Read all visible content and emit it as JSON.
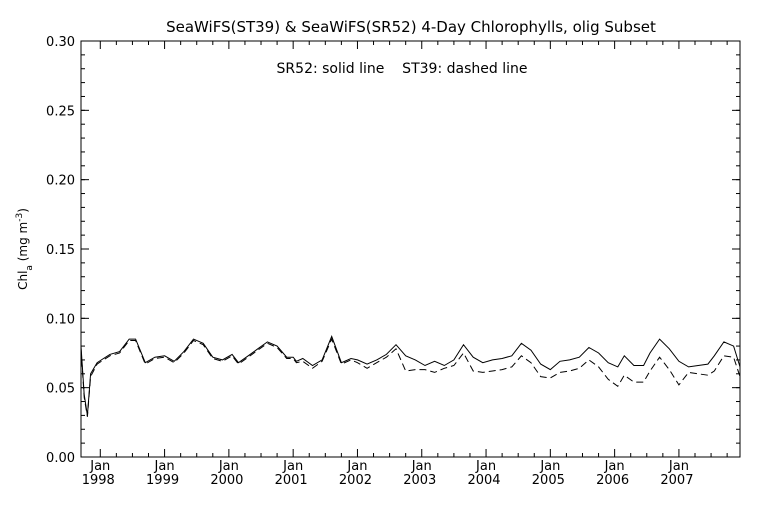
{
  "chart_data": {
    "type": "line",
    "title": "SeaWiFS(ST39) & SeaWiFS(SR52) 4-Day Chlorophylls, olig Subset",
    "annotation": "SR52: solid line    ST39: dashed line",
    "ylabel": {
      "main": "Chl",
      "sub": "a",
      "units_open": " (mg m",
      "sup": "-3",
      "units_close": ")"
    },
    "xlim": [
      1997.7,
      2007.95
    ],
    "ylim": [
      0.0,
      0.3
    ],
    "yticks": [
      "0.00",
      "0.05",
      "0.10",
      "0.15",
      "0.20",
      "0.25",
      "0.30"
    ],
    "xticks": [
      {
        "value": 1998.0,
        "month": "Jan",
        "year": "1998"
      },
      {
        "value": 1999.0,
        "month": "Jan",
        "year": "1999"
      },
      {
        "value": 2000.0,
        "month": "Jan",
        "year": "2000"
      },
      {
        "value": 2001.0,
        "month": "Jan",
        "year": "2001"
      },
      {
        "value": 2002.0,
        "month": "Jan",
        "year": "2002"
      },
      {
        "value": 2003.0,
        "month": "Jan",
        "year": "2003"
      },
      {
        "value": 2004.0,
        "month": "Jan",
        "year": "2004"
      },
      {
        "value": 2005.0,
        "month": "Jan",
        "year": "2005"
      },
      {
        "value": 2006.0,
        "month": "Jan",
        "year": "2006"
      },
      {
        "value": 2007.0,
        "month": "Jan",
        "year": "2007"
      }
    ],
    "series": [
      {
        "style": "solid",
        "x": [
          1997.7,
          1997.75,
          1997.8,
          1997.85,
          1997.95,
          1998.05,
          1998.15,
          1998.3,
          1998.45,
          1998.55,
          1998.7,
          1998.85,
          1999.0,
          1999.15,
          1999.3,
          1999.45,
          1999.6,
          1999.75,
          1999.9,
          2000.05,
          2000.15,
          2000.3,
          2000.45,
          2000.6,
          2000.75,
          2000.9,
          2001.0,
          2001.05,
          2001.15,
          2001.3,
          2001.45,
          2001.6,
          2001.75,
          2001.9,
          2002.0,
          2002.15,
          2002.3,
          2002.45,
          2002.6,
          2002.75,
          2002.9,
          2003.05,
          2003.2,
          2003.35,
          2003.5,
          2003.65,
          2003.8,
          2003.95,
          2004.1,
          2004.25,
          2004.4,
          2004.55,
          2004.7,
          2004.85,
          2005.0,
          2005.15,
          2005.3,
          2005.45,
          2005.6,
          2005.75,
          2005.9,
          2006.05,
          2006.15,
          2006.3,
          2006.45,
          2006.55,
          2006.7,
          2006.85,
          2007.0,
          2007.15,
          2007.3,
          2007.45,
          2007.55,
          2007.7,
          2007.85,
          2007.95
        ],
        "values": [
          0.08,
          0.045,
          0.03,
          0.06,
          0.068,
          0.071,
          0.074,
          0.076,
          0.085,
          0.085,
          0.068,
          0.072,
          0.073,
          0.069,
          0.076,
          0.085,
          0.082,
          0.072,
          0.07,
          0.074,
          0.068,
          0.073,
          0.078,
          0.083,
          0.08,
          0.072,
          0.072,
          0.069,
          0.071,
          0.066,
          0.07,
          0.087,
          0.068,
          0.071,
          0.07,
          0.067,
          0.07,
          0.074,
          0.081,
          0.073,
          0.07,
          0.066,
          0.069,
          0.066,
          0.07,
          0.081,
          0.072,
          0.068,
          0.07,
          0.071,
          0.073,
          0.082,
          0.077,
          0.067,
          0.063,
          0.069,
          0.07,
          0.072,
          0.079,
          0.075,
          0.068,
          0.065,
          0.073,
          0.066,
          0.066,
          0.075,
          0.085,
          0.078,
          0.069,
          0.065,
          0.066,
          0.067,
          0.073,
          0.083,
          0.08,
          0.065
        ]
      },
      {
        "style": "dashed",
        "x": [
          1997.7,
          1997.75,
          1997.8,
          1997.85,
          1997.95,
          1998.05,
          1998.15,
          1998.3,
          1998.45,
          1998.55,
          1998.7,
          1998.85,
          1999.0,
          1999.15,
          1999.3,
          1999.45,
          1999.6,
          1999.75,
          1999.9,
          2000.05,
          2000.15,
          2000.3,
          2000.45,
          2000.6,
          2000.75,
          2000.9,
          2001.0,
          2001.05,
          2001.15,
          2001.3,
          2001.45,
          2001.6,
          2001.75,
          2001.9,
          2002.0,
          2002.15,
          2002.3,
          2002.45,
          2002.6,
          2002.75,
          2002.9,
          2003.05,
          2003.2,
          2003.35,
          2003.5,
          2003.65,
          2003.8,
          2003.95,
          2004.1,
          2004.25,
          2004.4,
          2004.55,
          2004.7,
          2004.85,
          2005.0,
          2005.15,
          2005.3,
          2005.45,
          2005.6,
          2005.75,
          2005.9,
          2006.05,
          2006.15,
          2006.3,
          2006.45,
          2006.55,
          2006.7,
          2006.85,
          2007.0,
          2007.15,
          2007.3,
          2007.45,
          2007.55,
          2007.7,
          2007.85,
          2007.95
        ],
        "values": [
          0.078,
          0.043,
          0.029,
          0.058,
          0.067,
          0.07,
          0.073,
          0.075,
          0.084,
          0.084,
          0.067,
          0.071,
          0.072,
          0.068,
          0.075,
          0.084,
          0.081,
          0.071,
          0.069,
          0.073,
          0.067,
          0.072,
          0.077,
          0.082,
          0.079,
          0.071,
          0.071,
          0.068,
          0.069,
          0.064,
          0.069,
          0.085,
          0.067,
          0.07,
          0.068,
          0.064,
          0.068,
          0.072,
          0.078,
          0.062,
          0.063,
          0.063,
          0.061,
          0.064,
          0.066,
          0.075,
          0.062,
          0.061,
          0.062,
          0.063,
          0.065,
          0.073,
          0.068,
          0.058,
          0.057,
          0.061,
          0.062,
          0.064,
          0.07,
          0.065,
          0.056,
          0.051,
          0.059,
          0.054,
          0.054,
          0.062,
          0.072,
          0.063,
          0.052,
          0.061,
          0.06,
          0.059,
          0.062,
          0.073,
          0.072,
          0.058
        ]
      }
    ]
  }
}
